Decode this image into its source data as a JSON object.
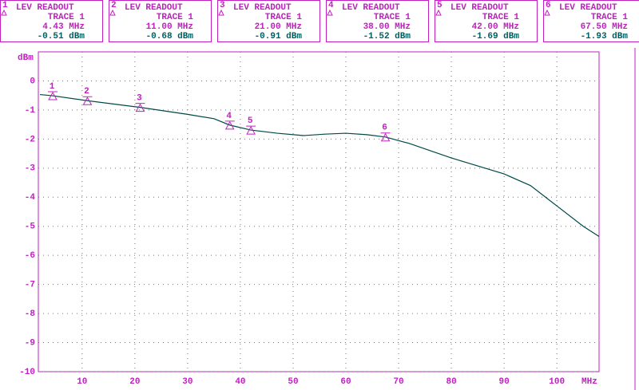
{
  "chart_data": {
    "type": "line",
    "readout_title": "LEV READOUT",
    "y_label": "dBm",
    "x_label": "MHz",
    "x": [
      2,
      4.43,
      11,
      21,
      30,
      35,
      38,
      42,
      47,
      52,
      56,
      60,
      64,
      67.5,
      72,
      80,
      90,
      95,
      100,
      105,
      108
    ],
    "series": [
      {
        "name": "TRACE 1",
        "color": "#004848",
        "values": [
          -0.47,
          -0.51,
          -0.68,
          -0.91,
          -1.15,
          -1.3,
          -1.52,
          -1.69,
          -1.8,
          -1.88,
          -1.83,
          -1.8,
          -1.85,
          -1.93,
          -2.15,
          -2.65,
          -3.2,
          -3.6,
          -4.3,
          -5.0,
          -5.35
        ]
      }
    ],
    "markers": [
      {
        "name": "1",
        "x": 4.43,
        "x_label": "4.43 MHz",
        "y": -0.51,
        "y_label": "-0.51 dBm"
      },
      {
        "name": "2",
        "x": 11,
        "x_label": "11.00 MHz",
        "y": -0.68,
        "y_label": "-0.68 dBm"
      },
      {
        "name": "3",
        "x": 21,
        "x_label": "21.00 MHz",
        "y": -0.91,
        "y_label": "-0.91 dBm"
      },
      {
        "name": "4",
        "x": 38,
        "x_label": "38.00 MHz",
        "y": -1.52,
        "y_label": "-1.52 dBm"
      },
      {
        "name": "5",
        "x": 42,
        "x_label": "42.00 MHz",
        "y": -1.69,
        "y_label": "-1.69 dBm"
      },
      {
        "name": "6",
        "x": 67.5,
        "x_label": "67.50 MHz",
        "y": -1.93,
        "y_label": "-1.93 dBm"
      }
    ],
    "xlim": [
      1.7,
      108
    ],
    "xticks": [
      10,
      20,
      30,
      40,
      50,
      60,
      70,
      80,
      90,
      100
    ],
    "ylim": [
      -10,
      1
    ],
    "yticks": [
      0,
      -1,
      -2,
      -3,
      -4,
      -5,
      -6,
      -7,
      -8,
      -9,
      -10
    ],
    "grid": true,
    "marker_color": "#c020c0",
    "readout_color": "#006060"
  }
}
